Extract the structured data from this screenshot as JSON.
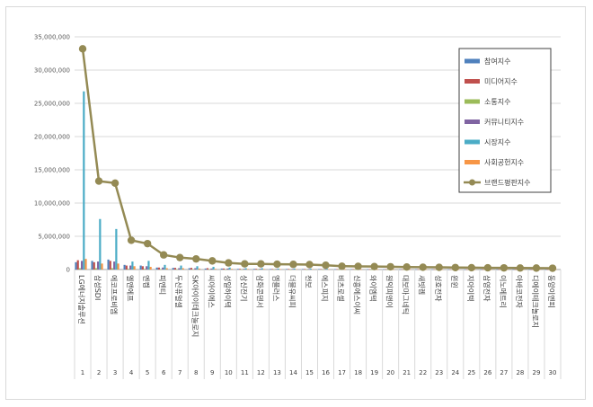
{
  "chart_data": {
    "type": "bar",
    "title": "",
    "xlabel": "",
    "ylabel": "",
    "ylim": [
      0,
      35000000
    ],
    "y_ticks": [
      "0",
      "5,000,000",
      "10,000,000",
      "15,000,000",
      "20,000,000",
      "25,000,000",
      "30,000,000",
      "35,000,000"
    ],
    "grid": "horizontal",
    "legend_position": "top-right",
    "indices": [
      "1",
      "2",
      "3",
      "4",
      "5",
      "6",
      "7",
      "8",
      "9",
      "10",
      "11",
      "12",
      "13",
      "14",
      "15",
      "16",
      "17",
      "18",
      "19",
      "20",
      "21",
      "22",
      "23",
      "24",
      "25",
      "26",
      "27",
      "28",
      "29",
      "30"
    ],
    "categories": [
      "LG에너지솔루션",
      "삼성SDI",
      "에코프로비엠",
      "엘앤에프",
      "엔켐",
      "피엔티",
      "두산퓨얼셀",
      "SK아이이테크놀로지",
      "씨아이에스",
      "성일하이텍",
      "상신전기",
      "삼화콘덴서",
      "엠플러스",
      "더블유씨피",
      "천보",
      "에스피지",
      "비츠로셀",
      "신흥에스이씨",
      "와이엠텍",
      "원익피앤이",
      "대보마그네틱",
      "새빗켐",
      "성호전자",
      "윈윈",
      "지아이텍",
      "삼영전자",
      "이노메트리",
      "아바코전자",
      "디에이테크놀로지",
      "동양이엔피"
    ],
    "series": [
      {
        "name": "참여지수",
        "color": "#4f81bd",
        "values": [
          1100000,
          1300000,
          1500000,
          700000,
          600000,
          300000,
          250000,
          200000,
          150000,
          150000,
          100000,
          100000,
          80000,
          80000,
          80000,
          70000,
          60000,
          60000,
          50000,
          50000,
          40000,
          40000,
          40000,
          30000,
          30000,
          30000,
          30000,
          30000,
          20000,
          20000
        ]
      },
      {
        "name": "미디어지수",
        "color": "#c0504d",
        "values": [
          1400000,
          1100000,
          1300000,
          600000,
          500000,
          300000,
          250000,
          250000,
          200000,
          150000,
          100000,
          100000,
          80000,
          80000,
          80000,
          70000,
          60000,
          60000,
          50000,
          50000,
          40000,
          40000,
          40000,
          30000,
          30000,
          30000,
          30000,
          30000,
          20000,
          20000
        ]
      },
      {
        "name": "소통지수",
        "color": "#9bbb59",
        "values": [
          200000,
          200000,
          200000,
          100000,
          100000,
          50000,
          50000,
          40000,
          40000,
          30000,
          30000,
          30000,
          20000,
          20000,
          20000,
          20000,
          20000,
          20000,
          10000,
          10000,
          10000,
          10000,
          10000,
          10000,
          10000,
          10000,
          10000,
          10000,
          10000,
          10000
        ]
      },
      {
        "name": "커뮤니티지수",
        "color": "#8064a2",
        "values": [
          1300000,
          1200000,
          1200000,
          600000,
          500000,
          300000,
          200000,
          200000,
          150000,
          150000,
          100000,
          100000,
          80000,
          80000,
          80000,
          70000,
          60000,
          60000,
          50000,
          50000,
          40000,
          40000,
          40000,
          30000,
          30000,
          30000,
          30000,
          30000,
          20000,
          20000
        ]
      },
      {
        "name": "시장지수",
        "color": "#4bacc6",
        "values": [
          26800000,
          7600000,
          6100000,
          1200000,
          1300000,
          700000,
          600000,
          500000,
          400000,
          300000,
          200000,
          200000,
          150000,
          150000,
          150000,
          120000,
          100000,
          100000,
          80000,
          80000,
          60000,
          60000,
          60000,
          50000,
          50000,
          50000,
          50000,
          50000,
          40000,
          40000
        ]
      },
      {
        "name": "사회공헌지수",
        "color": "#f79646",
        "values": [
          1600000,
          900000,
          900000,
          500000,
          400000,
          200000,
          200000,
          150000,
          100000,
          100000,
          80000,
          80000,
          60000,
          60000,
          60000,
          50000,
          40000,
          40000,
          30000,
          30000,
          30000,
          30000,
          30000,
          20000,
          20000,
          20000,
          20000,
          20000,
          20000,
          20000
        ]
      }
    ],
    "line_series": {
      "name": "브랜드평판지수",
      "color": "#948a54",
      "values": [
        33200000,
        13300000,
        13000000,
        4400000,
        3900000,
        2200000,
        1800000,
        1600000,
        1300000,
        1000000,
        850000,
        850000,
        800000,
        780000,
        750000,
        650000,
        500000,
        480000,
        450000,
        420000,
        380000,
        350000,
        330000,
        300000,
        280000,
        260000,
        250000,
        230000,
        220000,
        200000
      ]
    }
  }
}
